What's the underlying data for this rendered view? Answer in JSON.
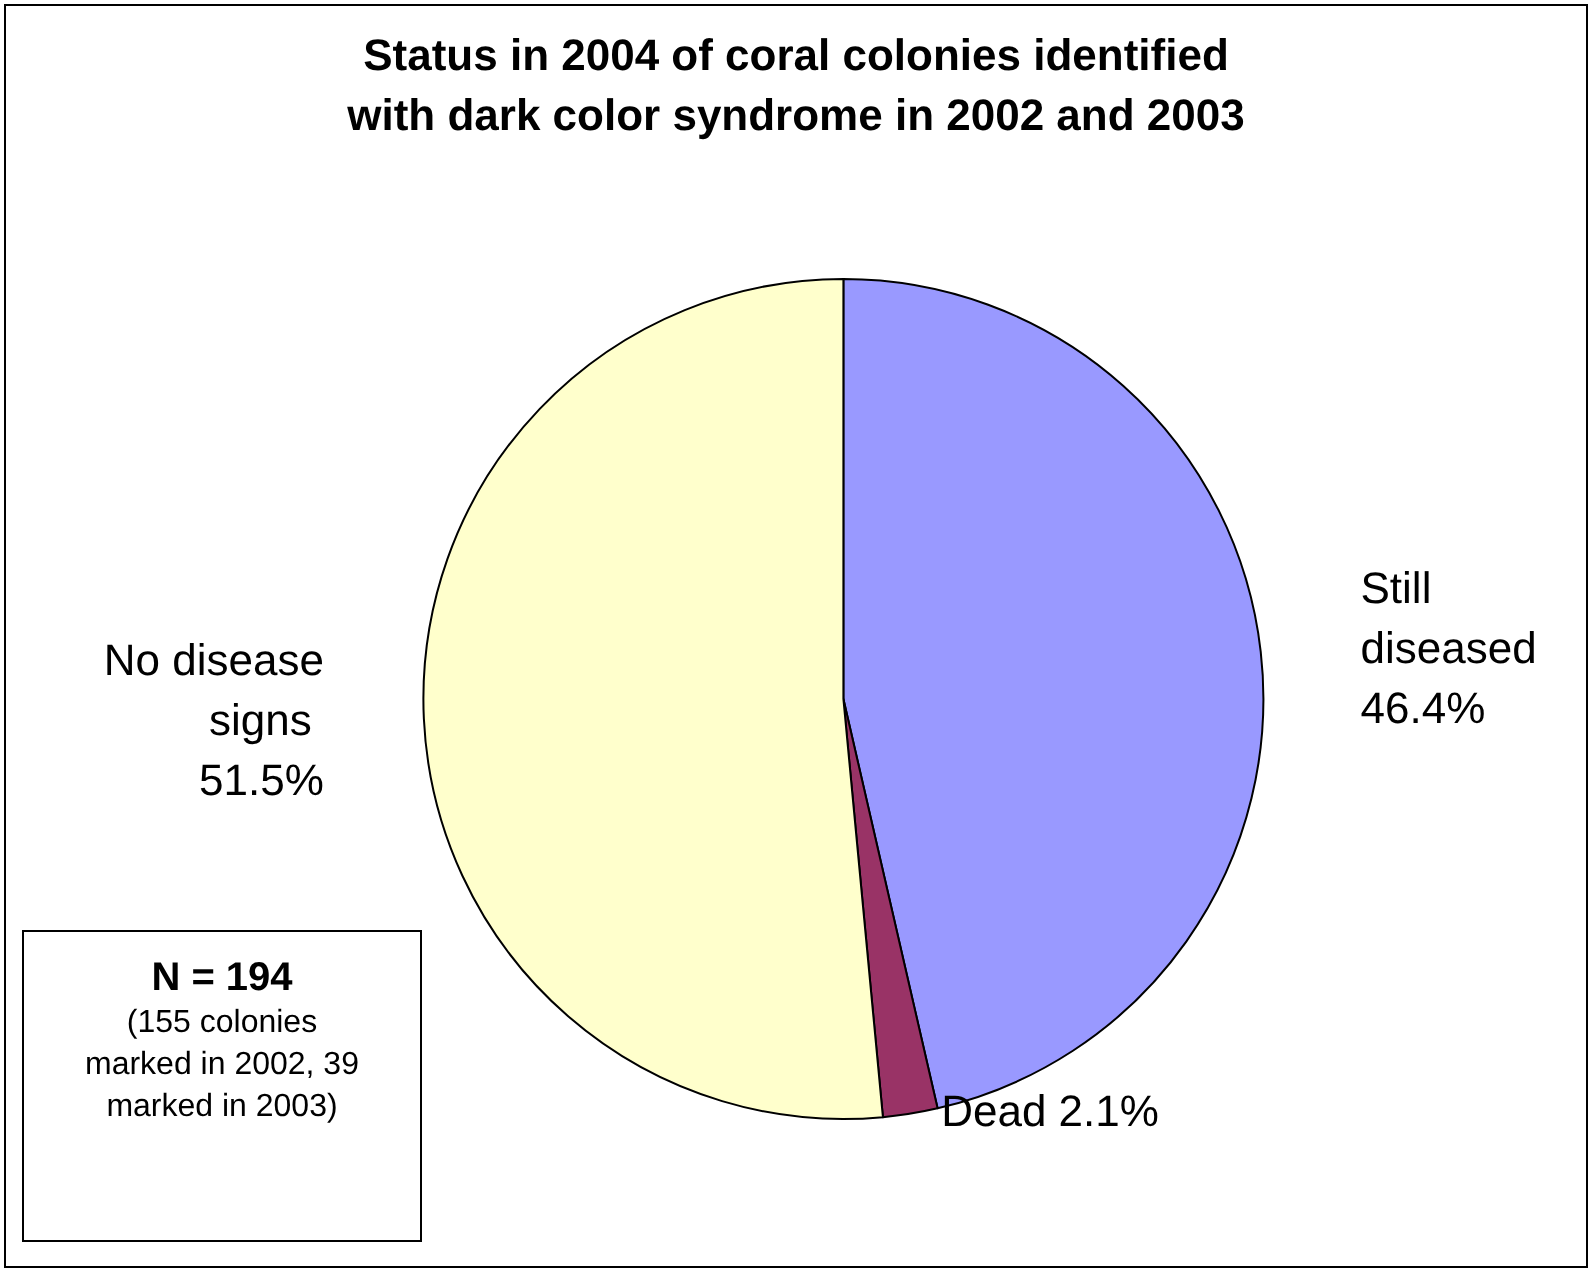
{
  "chart_data": {
    "type": "pie",
    "title": "Status in 2004 of coral colonies identified with dark color syndrome in 2002 and 2003",
    "categories": [
      "Still diseased",
      "Dead",
      "No disease signs"
    ],
    "values": [
      46.4,
      2.1,
      51.5
    ],
    "colors": [
      "#9999ff",
      "#993366",
      "#ffffcc"
    ],
    "annotations": [
      "N = 194",
      "(155 colonies marked in 2002, 39 marked in 2003)"
    ],
    "value_labels": [
      "46.4%",
      "2.1%",
      "51.5%"
    ],
    "legend": false
  }
}
